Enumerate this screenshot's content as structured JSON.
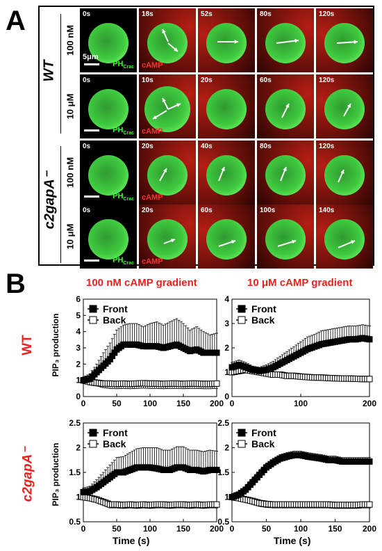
{
  "panel_a": {
    "letter": "A",
    "groups": [
      {
        "label": "WT",
        "rows": [
          0,
          1
        ]
      },
      {
        "label": "c2gapA⁻",
        "rows": [
          2,
          3
        ]
      }
    ],
    "rows": [
      {
        "concentration": "100 nM",
        "times": [
          "0s",
          "18s",
          "52s",
          "80s",
          "120s"
        ],
        "scale_label": "5μm"
      },
      {
        "concentration": "10 μM",
        "times": [
          "0s",
          "10s",
          "20s",
          "60s",
          "120s"
        ],
        "scale_label": ""
      },
      {
        "concentration": "100 nM",
        "times": [
          "0s",
          "20s",
          "40s",
          "80s",
          "120s"
        ],
        "scale_label": ""
      },
      {
        "concentration": "10 μM",
        "times": [
          "0s",
          "20s",
          "60s",
          "100s",
          "140s"
        ],
        "scale_label": ""
      }
    ],
    "label_ph": "PH",
    "label_ph_sub": "Crac",
    "label_camp": "cAMP",
    "colors": {
      "cell": "#3fc93f",
      "camp": "#b41e14",
      "background": "#000000",
      "arrow": "#ffffff"
    }
  },
  "panel_b": {
    "letter": "B",
    "group_labels": [
      "WT",
      "c2gapA⁻"
    ],
    "column_titles": [
      "100 nM cAMP gradient",
      "10 μM cAMP gradient"
    ],
    "ylabel": "PIP₃ production",
    "xlabel": "Time (s)",
    "title_color": "#e8231f"
  },
  "chart_data": [
    {
      "type": "line",
      "title": "100 nM cAMP gradient",
      "xlabel": "",
      "ylabel": "PIP₃ production",
      "xlim": [
        0,
        200
      ],
      "ylim": [
        0,
        6
      ],
      "xticks": [
        0,
        50,
        100,
        150,
        200
      ],
      "yticks": [
        0,
        1,
        2,
        3,
        4,
        5,
        6
      ],
      "legend": "top-left",
      "grid": false,
      "series": [
        {
          "name": "Front",
          "marker": "filled-square",
          "x": [
            0,
            10,
            20,
            30,
            40,
            50,
            60,
            70,
            80,
            90,
            100,
            110,
            120,
            130,
            140,
            150,
            160,
            170,
            180,
            190,
            200
          ],
          "y": [
            1.0,
            1.1,
            1.5,
            1.9,
            2.3,
            2.9,
            3.2,
            3.2,
            3.2,
            3.1,
            3.1,
            3.1,
            3.0,
            3.1,
            3.2,
            3.0,
            2.8,
            2.9,
            2.7,
            2.7,
            2.7
          ],
          "err": [
            0.2,
            0.3,
            0.5,
            0.8,
            1.0,
            1.2,
            1.2,
            1.3,
            1.3,
            1.2,
            1.4,
            1.5,
            1.4,
            1.5,
            1.6,
            1.5,
            1.3,
            1.4,
            1.3,
            1.1,
            1.2
          ]
        },
        {
          "name": "Back",
          "marker": "open-square",
          "x": [
            0,
            10,
            20,
            30,
            40,
            50,
            60,
            70,
            80,
            90,
            100,
            110,
            120,
            130,
            140,
            150,
            160,
            170,
            180,
            190,
            200
          ],
          "y": [
            1.0,
            0.9,
            0.85,
            0.8,
            0.8,
            0.78,
            0.8,
            0.78,
            0.8,
            0.82,
            0.8,
            0.8,
            0.78,
            0.8,
            0.8,
            0.78,
            0.8,
            0.8,
            0.78,
            0.78,
            0.8
          ],
          "err": [
            0.1,
            0.2,
            0.2,
            0.25,
            0.3,
            0.3,
            0.3,
            0.3,
            0.3,
            0.3,
            0.3,
            0.3,
            0.3,
            0.3,
            0.3,
            0.3,
            0.3,
            0.3,
            0.3,
            0.3,
            0.3
          ]
        }
      ]
    },
    {
      "type": "line",
      "title": "10 μM cAMP gradient",
      "xlabel": "",
      "ylabel": "",
      "xlim": [
        0,
        200
      ],
      "ylim": [
        0,
        4
      ],
      "xticks": [
        0,
        100,
        200
      ],
      "yticks": [
        0,
        1,
        2,
        3,
        4
      ],
      "legend": "top-left",
      "grid": false,
      "series": [
        {
          "name": "Front",
          "marker": "filled-square",
          "x": [
            0,
            10,
            20,
            30,
            40,
            50,
            60,
            70,
            80,
            90,
            100,
            110,
            120,
            130,
            140,
            150,
            160,
            170,
            180,
            190,
            200
          ],
          "y": [
            1.2,
            1.3,
            1.2,
            1.1,
            1.05,
            1.1,
            1.2,
            1.35,
            1.5,
            1.65,
            1.8,
            1.95,
            2.05,
            2.15,
            2.2,
            2.25,
            2.3,
            2.35,
            2.35,
            2.4,
            2.35
          ],
          "err": [
            0.2,
            0.2,
            0.2,
            0.15,
            0.15,
            0.2,
            0.25,
            0.3,
            0.35,
            0.4,
            0.45,
            0.5,
            0.5,
            0.55,
            0.55,
            0.55,
            0.55,
            0.55,
            0.55,
            0.55,
            0.55
          ]
        },
        {
          "name": "Back",
          "marker": "open-square",
          "x": [
            0,
            10,
            20,
            30,
            40,
            50,
            60,
            70,
            80,
            90,
            100,
            110,
            120,
            130,
            140,
            150,
            160,
            170,
            180,
            190,
            200
          ],
          "y": [
            1.0,
            1.05,
            1.1,
            1.05,
            1.0,
            0.95,
            0.9,
            0.9,
            0.85,
            0.85,
            0.82,
            0.8,
            0.78,
            0.78,
            0.76,
            0.75,
            0.74,
            0.74,
            0.73,
            0.72,
            0.72
          ],
          "err": [
            0.1,
            0.12,
            0.12,
            0.12,
            0.1,
            0.1,
            0.1,
            0.1,
            0.1,
            0.1,
            0.1,
            0.1,
            0.1,
            0.1,
            0.1,
            0.1,
            0.1,
            0.1,
            0.1,
            0.1,
            0.1
          ]
        }
      ]
    },
    {
      "type": "line",
      "title": "",
      "xlabel": "Time (s)",
      "ylabel": "PIP₃ production",
      "xlim": [
        0,
        200
      ],
      "ylim": [
        0.5,
        2.5
      ],
      "xticks": [
        0,
        50,
        100,
        150,
        200
      ],
      "yticks": [
        0.5,
        1,
        1.5,
        2,
        2.5
      ],
      "legend": "top-left",
      "grid": false,
      "series": [
        {
          "name": "Front",
          "marker": "filled-square",
          "x": [
            0,
            10,
            20,
            30,
            40,
            50,
            60,
            70,
            80,
            90,
            100,
            110,
            120,
            130,
            140,
            150,
            160,
            170,
            180,
            190,
            200
          ],
          "y": [
            1.1,
            1.12,
            1.2,
            1.3,
            1.4,
            1.5,
            1.5,
            1.55,
            1.6,
            1.6,
            1.6,
            1.58,
            1.55,
            1.55,
            1.6,
            1.6,
            1.55,
            1.55,
            1.52,
            1.55,
            1.55
          ],
          "err": [
            0.08,
            0.1,
            0.15,
            0.2,
            0.25,
            0.3,
            0.32,
            0.35,
            0.38,
            0.4,
            0.4,
            0.42,
            0.4,
            0.4,
            0.42,
            0.42,
            0.4,
            0.4,
            0.4,
            0.4,
            0.38
          ]
        },
        {
          "name": "Back",
          "marker": "open-square",
          "x": [
            0,
            10,
            20,
            30,
            40,
            50,
            60,
            70,
            80,
            90,
            100,
            110,
            120,
            130,
            140,
            150,
            160,
            170,
            180,
            190,
            200
          ],
          "y": [
            1.0,
            0.98,
            0.95,
            0.9,
            0.85,
            0.85,
            0.84,
            0.85,
            0.84,
            0.85,
            0.84,
            0.85,
            0.85,
            0.84,
            0.85,
            0.85,
            0.84,
            0.85,
            0.84,
            0.85,
            0.85
          ],
          "err": [
            0.05,
            0.05,
            0.06,
            0.06,
            0.07,
            0.07,
            0.07,
            0.07,
            0.07,
            0.07,
            0.07,
            0.07,
            0.07,
            0.07,
            0.07,
            0.07,
            0.07,
            0.07,
            0.07,
            0.07,
            0.07
          ]
        }
      ]
    },
    {
      "type": "line",
      "title": "",
      "xlabel": "Time (s)",
      "ylabel": "",
      "xlim": [
        0,
        200
      ],
      "ylim": [
        0.5,
        2.5
      ],
      "xticks": [
        0,
        50,
        100,
        150,
        200
      ],
      "yticks": [
        0.5,
        1,
        1.5,
        2,
        2.5
      ],
      "legend": "top-left",
      "grid": false,
      "series": [
        {
          "name": "Front",
          "marker": "filled-square",
          "x": [
            0,
            10,
            20,
            30,
            40,
            50,
            60,
            70,
            80,
            90,
            100,
            110,
            120,
            130,
            140,
            150,
            160,
            170,
            180,
            190,
            200
          ],
          "y": [
            1.0,
            1.05,
            1.15,
            1.3,
            1.45,
            1.6,
            1.7,
            1.78,
            1.82,
            1.85,
            1.85,
            1.82,
            1.8,
            1.78,
            1.75,
            1.75,
            1.72,
            1.72,
            1.72,
            1.72,
            1.72
          ],
          "err": [
            0.05,
            0.05,
            0.06,
            0.07,
            0.08,
            0.08,
            0.08,
            0.08,
            0.08,
            0.08,
            0.08,
            0.08,
            0.08,
            0.08,
            0.08,
            0.08,
            0.08,
            0.08,
            0.08,
            0.08,
            0.08
          ]
        },
        {
          "name": "Back",
          "marker": "open-square",
          "x": [
            0,
            10,
            20,
            30,
            40,
            50,
            60,
            70,
            80,
            90,
            100,
            110,
            120,
            130,
            140,
            150,
            160,
            170,
            180,
            190,
            200
          ],
          "y": [
            1.0,
            0.98,
            0.95,
            0.92,
            0.88,
            0.86,
            0.85,
            0.85,
            0.85,
            0.85,
            0.85,
            0.85,
            0.85,
            0.85,
            0.85,
            0.84,
            0.84,
            0.84,
            0.84,
            0.85,
            0.85
          ],
          "err": [
            0.05,
            0.06,
            0.06,
            0.07,
            0.07,
            0.07,
            0.07,
            0.07,
            0.07,
            0.07,
            0.07,
            0.07,
            0.07,
            0.07,
            0.07,
            0.07,
            0.07,
            0.07,
            0.07,
            0.07,
            0.07
          ]
        }
      ]
    }
  ]
}
